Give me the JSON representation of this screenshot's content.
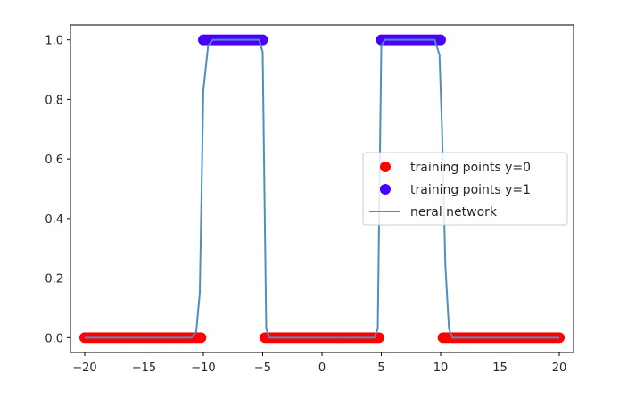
{
  "chart_data": {
    "type": "scatter",
    "title": "",
    "xlabel": "",
    "ylabel": "",
    "xlim": [
      -21.2,
      21.2
    ],
    "ylim": [
      -0.05,
      1.05
    ],
    "x_ticks": [
      -20,
      -15,
      -10,
      -5,
      0,
      5,
      10,
      15,
      20
    ],
    "x_tick_labels": [
      "−20",
      "−15",
      "−10",
      "−5",
      "0",
      "5",
      "10",
      "15",
      "20"
    ],
    "y_ticks": [
      0.0,
      0.2,
      0.4,
      0.6,
      0.8,
      1.0
    ],
    "y_tick_labels": [
      "0.0",
      "0.2",
      "0.4",
      "0.6",
      "0.8",
      "1.0"
    ],
    "grid": false,
    "legend_position": "center-right",
    "series": [
      {
        "name": "training points y=0",
        "kind": "scatter",
        "color": "#ff0000",
        "point_spacing": 0.2,
        "y": 0,
        "x_ranges": [
          [
            -20,
            -10.2
          ],
          [
            -4.8,
            4.8
          ],
          [
            10.2,
            20
          ]
        ]
      },
      {
        "name": "training points y=1",
        "kind": "scatter",
        "color": "#4b00ff",
        "point_spacing": 0.2,
        "y": 1,
        "x_ranges": [
          [
            -10,
            -5
          ],
          [
            5,
            10
          ]
        ]
      },
      {
        "name": "neral network",
        "kind": "line",
        "color": "#4f8fc0",
        "points": [
          [
            -20,
            0.0
          ],
          [
            -11,
            0.0
          ],
          [
            -10.6,
            0.02
          ],
          [
            -10.3,
            0.15
          ],
          [
            -10.0,
            0.83
          ],
          [
            -9.6,
            0.98
          ],
          [
            -9.2,
            1.0
          ],
          [
            -5.3,
            1.0
          ],
          [
            -5.0,
            0.96
          ],
          [
            -4.7,
            0.03
          ],
          [
            -4.4,
            0.0
          ],
          [
            4.4,
            0.0
          ],
          [
            4.7,
            0.03
          ],
          [
            5.0,
            0.98
          ],
          [
            5.3,
            1.0
          ],
          [
            9.5,
            1.0
          ],
          [
            9.9,
            0.95
          ],
          [
            10.1,
            0.72
          ],
          [
            10.4,
            0.24
          ],
          [
            10.7,
            0.03
          ],
          [
            11.0,
            0.0
          ],
          [
            20,
            0.0
          ]
        ]
      }
    ]
  }
}
